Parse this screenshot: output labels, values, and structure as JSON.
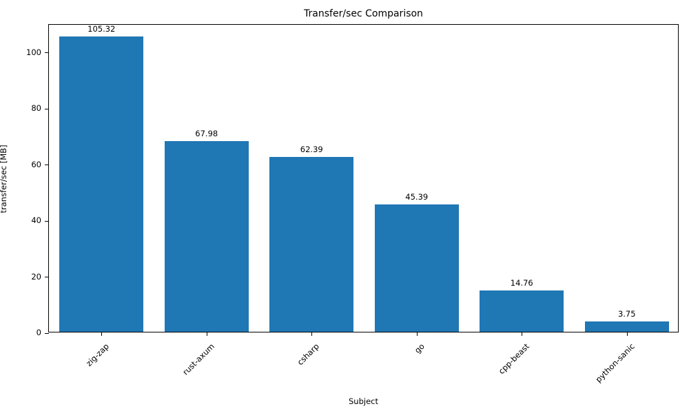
{
  "chart_data": {
    "type": "bar",
    "title": "Transfer/sec Comparison",
    "xlabel": "Subject",
    "ylabel": "transfer/sec [MB]",
    "categories": [
      "zig-zap",
      "rust-axum",
      "csharp",
      "go",
      "cpp-beast",
      "python-sanic"
    ],
    "values": [
      105.32,
      67.98,
      62.39,
      45.39,
      14.76,
      3.75
    ],
    "value_labels": [
      "105.32",
      "67.98",
      "62.39",
      "45.39",
      "14.76",
      "3.75"
    ],
    "yticks": [
      0,
      20,
      40,
      60,
      80,
      100
    ],
    "ylim": [
      0,
      110
    ],
    "bar_color": "#1f77b4",
    "legend": "none",
    "grid": false
  }
}
